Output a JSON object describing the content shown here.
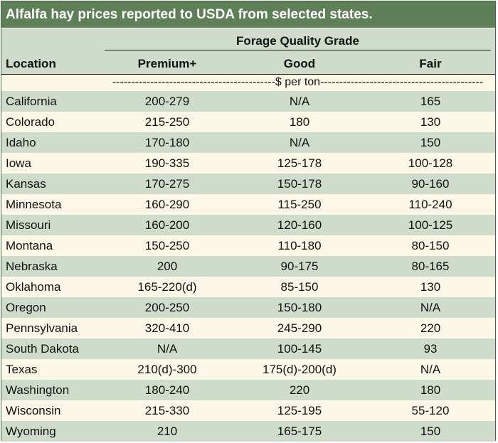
{
  "title": "Alfalfa hay prices reported to USDA from selected states.",
  "group_header": "Forage Quality Grade",
  "columns": {
    "location": "Location",
    "premium": "Premium+",
    "good": "Good",
    "fair": "Fair"
  },
  "unit_label": "-------------------------------------------$ per ton-------------------------------------------",
  "rows": [
    {
      "location": "California",
      "premium": "200-279",
      "good": "N/A",
      "fair": "165"
    },
    {
      "location": "Colorado",
      "premium": "215-250",
      "good": "180",
      "fair": "130"
    },
    {
      "location": "Idaho",
      "premium": "170-180",
      "good": "N/A",
      "fair": "150"
    },
    {
      "location": "Iowa",
      "premium": "190-335",
      "good": "125-178",
      "fair": "100-128"
    },
    {
      "location": "Kansas",
      "premium": "170-275",
      "good": "150-178",
      "fair": "90-160"
    },
    {
      "location": "Minnesota",
      "premium": "160-290",
      "good": "115-250",
      "fair": "110-240"
    },
    {
      "location": "Missouri",
      "premium": "160-200",
      "good": "120-160",
      "fair": "100-125"
    },
    {
      "location": "Montana",
      "premium": "150-250",
      "good": "110-180",
      "fair": "80-150"
    },
    {
      "location": "Nebraska",
      "premium": "200",
      "good": "90-175",
      "fair": "80-165"
    },
    {
      "location": "Oklahoma",
      "premium": "165-220(d)",
      "good": "85-150",
      "fair": "130"
    },
    {
      "location": "Oregon",
      "premium": "200-250",
      "good": "150-180",
      "fair": "N/A"
    },
    {
      "location": "Pennsylvania",
      "premium": "320-410",
      "good": "245-290",
      "fair": "220"
    },
    {
      "location": "South Dakota",
      "premium": "N/A",
      "good": "100-145",
      "fair": "93"
    },
    {
      "location": "Texas",
      "premium": "210(d)-300",
      "good": "175(d)-200(d)",
      "fair": "N/A"
    },
    {
      "location": "Washington",
      "premium": "180-240",
      "good": "220",
      "fair": "180"
    },
    {
      "location": "Wisconsin",
      "premium": "215-330",
      "good": "125-195",
      "fair": "55-120"
    },
    {
      "location": "Wyoming",
      "premium": "210",
      "good": "165-175",
      "fair": "150"
    }
  ],
  "colors": {
    "title_bg": "#5f7f58",
    "band_green": "#cfdccb",
    "band_cream": "#fdf7e8"
  }
}
